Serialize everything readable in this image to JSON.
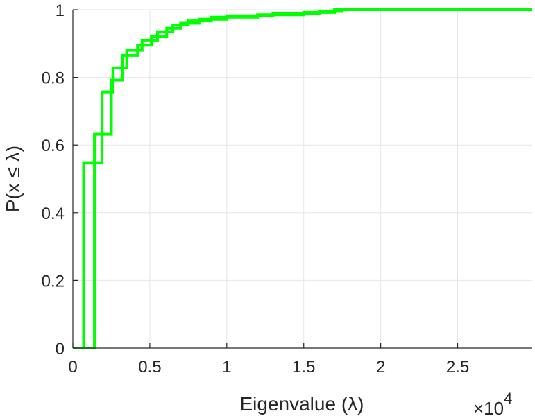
{
  "chart_data": {
    "type": "line",
    "subtype": "stairs-ecdf",
    "title": "",
    "xlabel": "Eigenvalue (λ)",
    "ylabel": "P(x ≤ λ)",
    "xlim": [
      0,
      29800
    ],
    "ylim": [
      0,
      1
    ],
    "x_ticks": [
      0,
      5000,
      10000,
      15000,
      20000,
      25000
    ],
    "x_tick_labels": [
      "0",
      "0.5",
      "1",
      "1.5",
      "2",
      "2.5"
    ],
    "x_exponent_label": "×10",
    "x_exponent": "4",
    "y_ticks": [
      0,
      0.2,
      0.4,
      0.6,
      0.8,
      1
    ],
    "y_tick_labels": [
      "0",
      "0.2",
      "0.4",
      "0.6",
      "0.8",
      "1"
    ],
    "grid": true,
    "line_color": "#00ff00",
    "series": [
      {
        "x": [
          0,
          700,
          700,
          1900,
          1900,
          2600,
          2600,
          3500,
          3500,
          4500,
          4500,
          5500,
          5500,
          6500,
          6500,
          7500,
          7500,
          9000,
          9000,
          12000,
          12000,
          15000,
          15000,
          17000,
          17000,
          29800
        ],
        "y": [
          0,
          0,
          0.548,
          0.548,
          0.757,
          0.757,
          0.828,
          0.828,
          0.88,
          0.88,
          0.91,
          0.91,
          0.935,
          0.935,
          0.955,
          0.955,
          0.967,
          0.967,
          0.978,
          0.978,
          0.985,
          0.985,
          0.992,
          0.992,
          1,
          1
        ]
      },
      {
        "x": [
          0,
          1400,
          1400,
          2500,
          2500,
          3200,
          3200,
          4200,
          4200,
          5100,
          5100,
          6100,
          6100,
          7000,
          7000,
          8200,
          8200,
          10000,
          10000,
          13000,
          13000,
          16000,
          16000,
          17500,
          17500,
          29800
        ],
        "y": [
          0,
          0,
          0.632,
          0.632,
          0.792,
          0.792,
          0.865,
          0.865,
          0.895,
          0.895,
          0.92,
          0.92,
          0.945,
          0.945,
          0.96,
          0.96,
          0.972,
          0.972,
          0.982,
          0.982,
          0.988,
          0.988,
          0.995,
          0.995,
          1,
          1
        ]
      }
    ]
  }
}
